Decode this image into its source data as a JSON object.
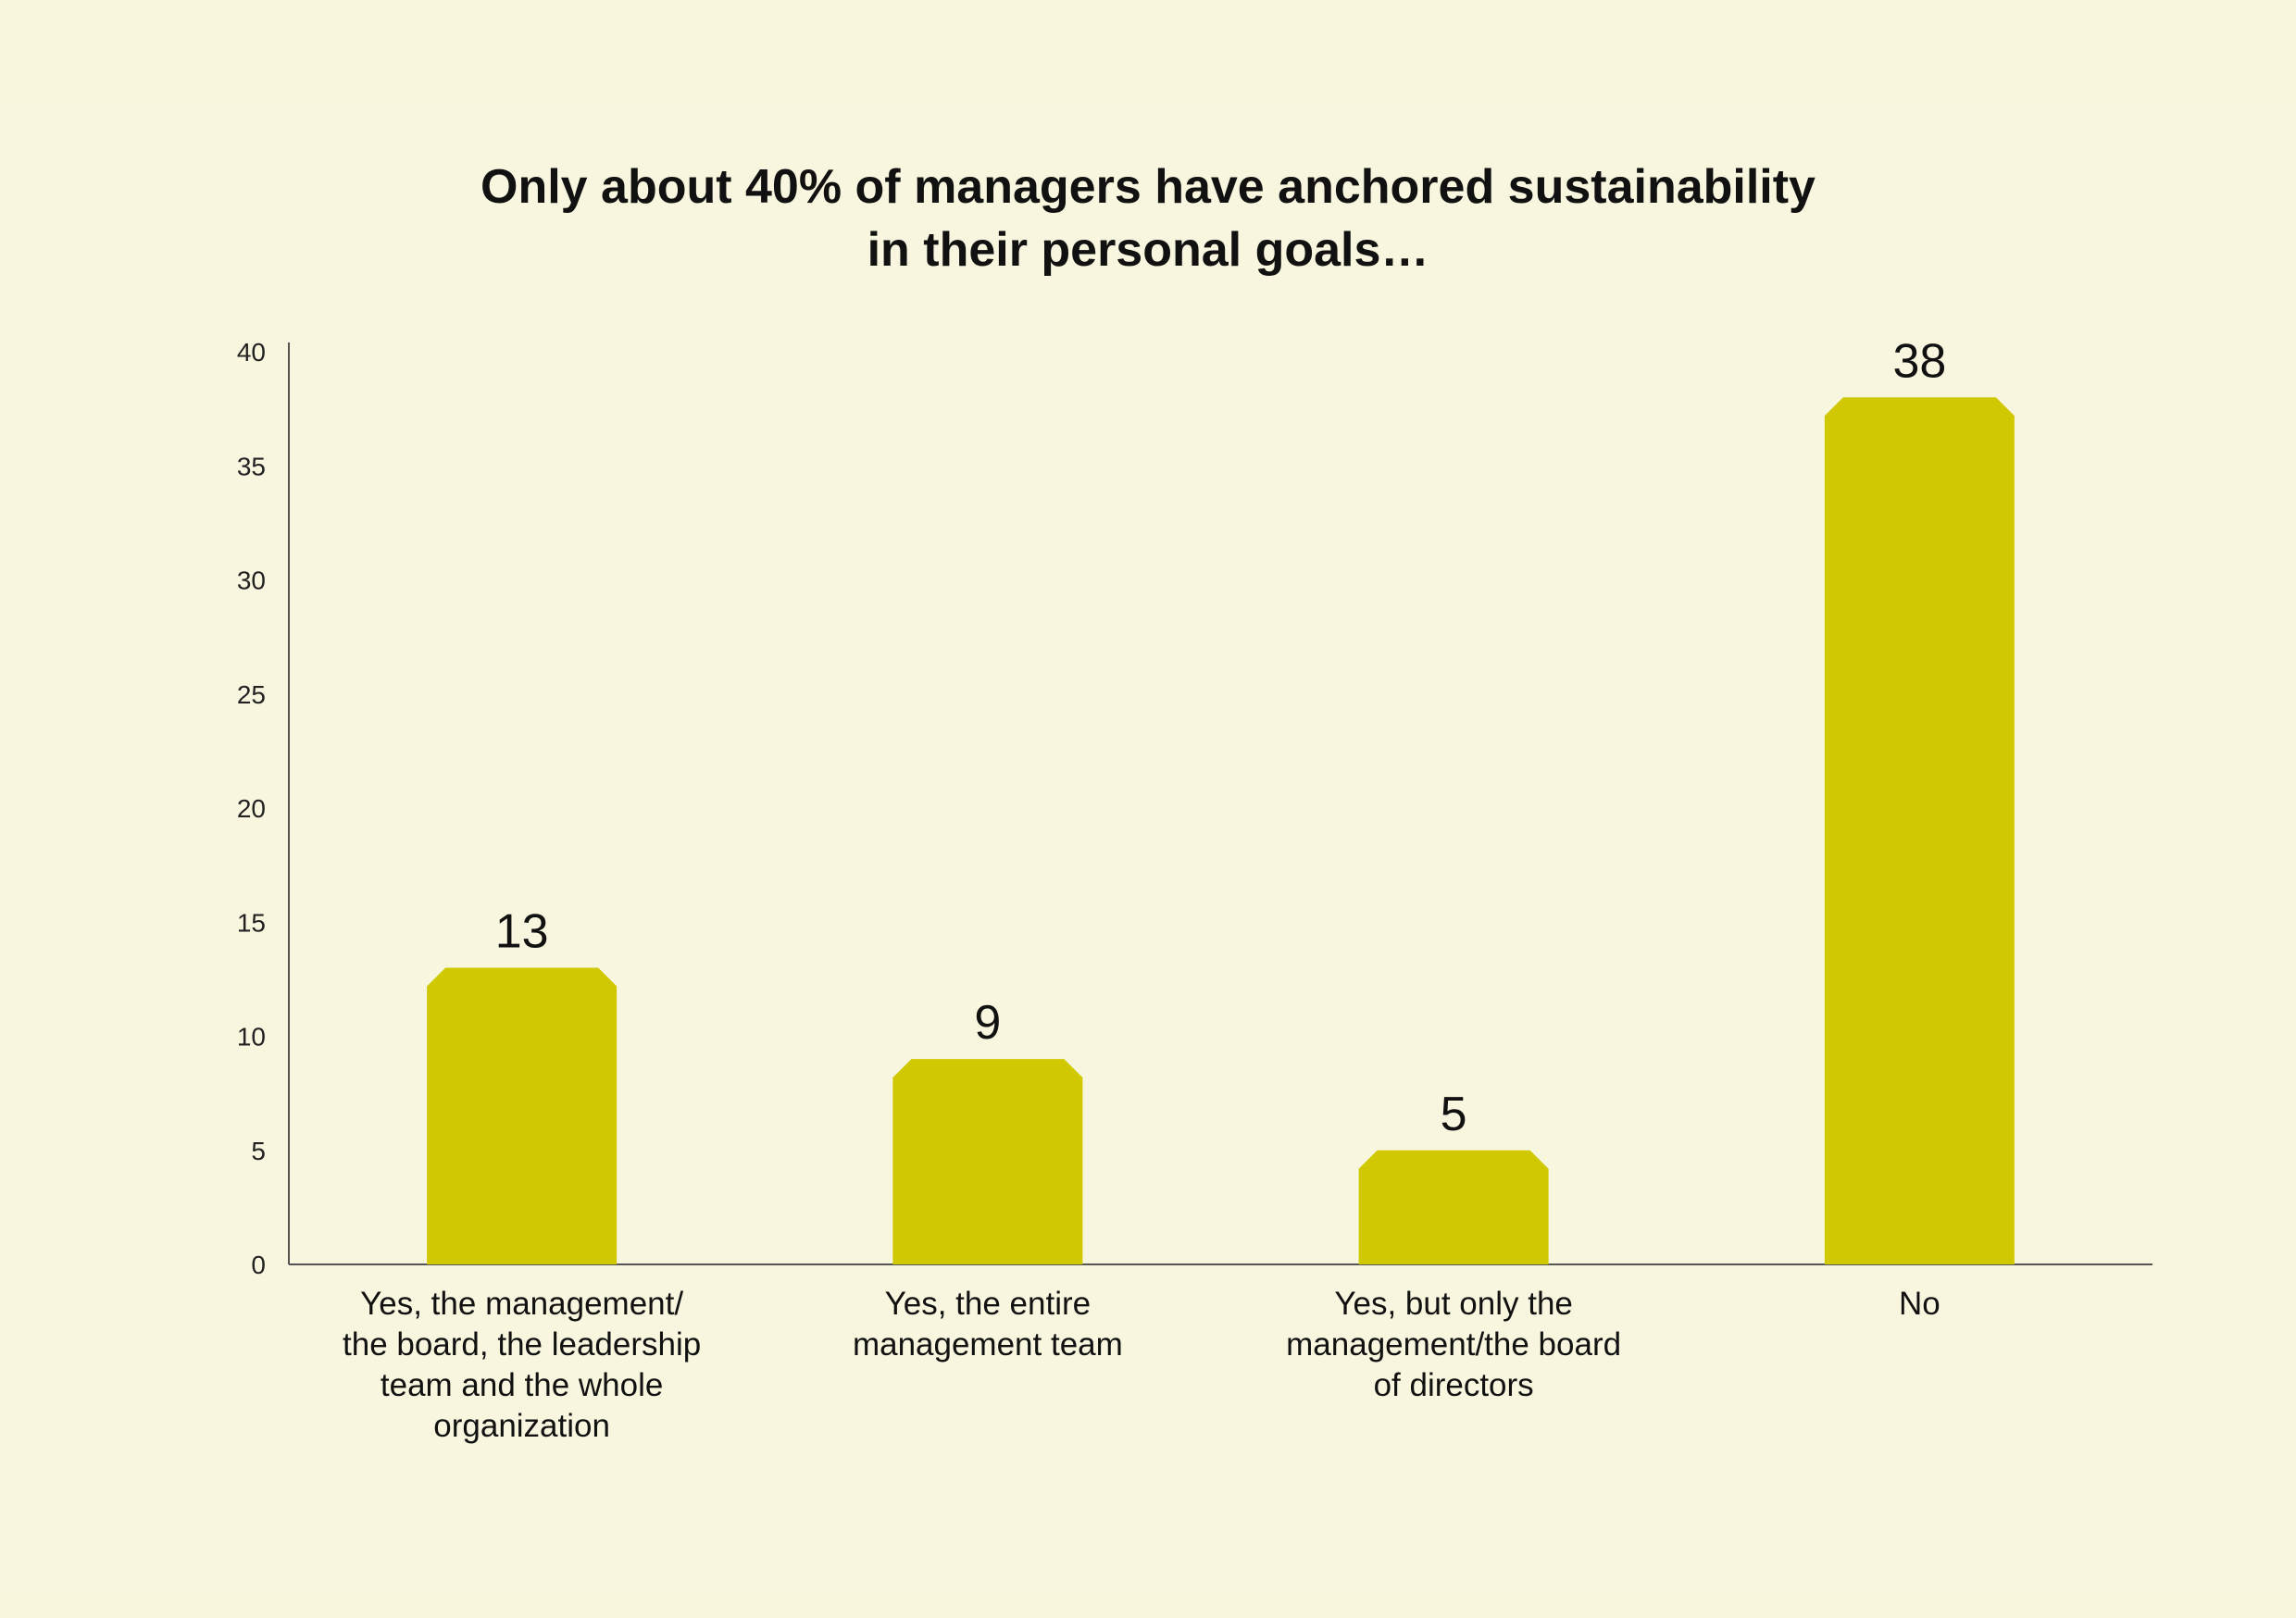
{
  "chart_data": {
    "type": "bar",
    "title": "Only about 40% of managers have anchored sustainability\nin their personal goals…",
    "categories": [
      [
        "Yes, the management/",
        "the board, the leadership",
        "team and the whole",
        "organization"
      ],
      [
        "Yes, the entire",
        "management team"
      ],
      [
        "Yes, but only the",
        "management/the board",
        "of directors"
      ],
      [
        "No"
      ]
    ],
    "values": [
      13,
      9,
      5,
      38
    ],
    "data_labels": [
      "13",
      "9",
      "5",
      "38"
    ],
    "yticks": [
      "0",
      "5",
      "10",
      "15",
      "20",
      "25",
      "30",
      "35",
      "40"
    ],
    "ylim": [
      0,
      40
    ],
    "xlabel": "",
    "ylabel": "",
    "grid": false,
    "bar_color": "#d0c800",
    "background_color": "#f7f5dc"
  }
}
